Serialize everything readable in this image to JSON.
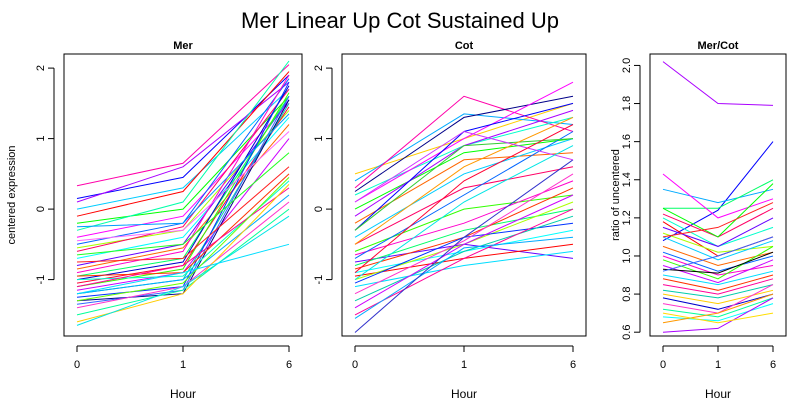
{
  "title": "Mer Linear Up Cot Sustained Up",
  "chart_data": [
    {
      "type": "line",
      "title": "Mer",
      "xlabel": "Hour",
      "ylabel": "centered expression",
      "x_ticks": [
        "0",
        "1",
        "6"
      ],
      "y_ticks": [
        -1,
        0,
        1,
        2
      ],
      "ylim": [
        -1.8,
        2.2
      ],
      "series": [
        {
          "values": [
            0.33,
            0.65,
            2.05
          ],
          "color": "#ff00aa"
        },
        {
          "values": [
            0.15,
            0.45,
            1.9
          ],
          "color": "#0000ff"
        },
        {
          "values": [
            0.1,
            0.6,
            1.8
          ],
          "color": "#aa00ff"
        },
        {
          "values": [
            0.0,
            0.3,
            1.7
          ],
          "color": "#00ccff"
        },
        {
          "values": [
            -0.1,
            0.25,
            1.95
          ],
          "color": "#ff0000"
        },
        {
          "values": [
            -0.2,
            0.0,
            1.6
          ],
          "color": "#00ff00"
        },
        {
          "values": [
            -0.3,
            0.1,
            2.1
          ],
          "color": "#00ffaa"
        },
        {
          "values": [
            -0.4,
            -0.1,
            1.5
          ],
          "color": "#ff00ff"
        },
        {
          "values": [
            -0.5,
            -0.2,
            1.85
          ],
          "color": "#0066ff"
        },
        {
          "values": [
            -0.55,
            -0.3,
            1.4
          ],
          "color": "#aaff00"
        },
        {
          "values": [
            -0.6,
            -0.25,
            1.7
          ],
          "color": "#ff0066"
        },
        {
          "values": [
            -0.7,
            -0.4,
            1.3
          ],
          "color": "#00ffff"
        },
        {
          "values": [
            -0.8,
            -0.5,
            1.55
          ],
          "color": "#6600ff"
        },
        {
          "values": [
            -0.85,
            -0.55,
            1.2
          ],
          "color": "#ff6600"
        },
        {
          "values": [
            -0.9,
            -0.6,
            1.9
          ],
          "color": "#ff00cc"
        },
        {
          "values": [
            -0.95,
            -0.7,
            1.6
          ],
          "color": "#00ff66"
        },
        {
          "values": [
            -1.0,
            -0.75,
            1.75
          ],
          "color": "#0000cc"
        },
        {
          "values": [
            -1.05,
            -0.8,
            1.45
          ],
          "color": "#ff0033"
        },
        {
          "values": [
            -1.1,
            -0.85,
            1.65
          ],
          "color": "#33ff00"
        },
        {
          "values": [
            -1.15,
            -0.9,
            1.0
          ],
          "color": "#cc00ff"
        },
        {
          "values": [
            -1.2,
            -1.0,
            1.5
          ],
          "color": "#00ccaa"
        },
        {
          "values": [
            -1.25,
            -1.1,
            1.8
          ],
          "color": "#0033ff"
        },
        {
          "values": [
            -1.3,
            -1.2,
            1.55
          ],
          "color": "#000088"
        },
        {
          "values": [
            -1.35,
            -1.15,
            1.6
          ],
          "color": "#3366ff"
        },
        {
          "values": [
            -0.95,
            -0.9,
            0.5
          ],
          "color": "#ff3300"
        },
        {
          "values": [
            -1.0,
            -0.95,
            0.4
          ],
          "color": "#00ffcc"
        },
        {
          "values": [
            -1.1,
            -0.8,
            0.3
          ],
          "color": "#ff0099"
        },
        {
          "values": [
            -1.2,
            -1.0,
            0.2
          ],
          "color": "#00aaff"
        },
        {
          "values": [
            -1.3,
            -1.05,
            0.45
          ],
          "color": "#66ff00"
        },
        {
          "values": [
            -1.4,
            -1.1,
            0.1
          ],
          "color": "#ff33cc"
        },
        {
          "values": [
            -1.5,
            -1.15,
            0.0
          ],
          "color": "#00ff99"
        },
        {
          "values": [
            -1.6,
            -1.2,
            0.35
          ],
          "color": "#ffcc00"
        },
        {
          "values": [
            -1.65,
            -1.1,
            -0.1
          ],
          "color": "#00e5e5"
        },
        {
          "values": [
            -1.2,
            -0.9,
            -0.5
          ],
          "color": "#00ddff"
        },
        {
          "values": [
            -0.75,
            -0.7,
            0.6
          ],
          "color": "#ff2222"
        },
        {
          "values": [
            -0.65,
            -0.5,
            0.8
          ],
          "color": "#22ff22"
        },
        {
          "values": [
            -0.45,
            -0.3,
            1.1
          ],
          "color": "#ff66ff"
        },
        {
          "values": [
            -0.25,
            -0.2,
            1.35
          ],
          "color": "#0099ff"
        }
      ]
    },
    {
      "type": "line",
      "title": "Cot",
      "xlabel": "Hour",
      "ylabel": "",
      "x_ticks": [
        "0",
        "1",
        "6"
      ],
      "y_ticks": [
        -1,
        0,
        1,
        2
      ],
      "ylim": [
        -1.8,
        2.2
      ],
      "series": [
        {
          "values": [
            0.5,
            1.0,
            1.5
          ],
          "color": "#ffcc00"
        },
        {
          "values": [
            0.4,
            1.35,
            1.2
          ],
          "color": "#00aaff"
        },
        {
          "values": [
            0.3,
            1.6,
            1.1
          ],
          "color": "#ff00aa"
        },
        {
          "values": [
            0.25,
            1.3,
            1.6
          ],
          "color": "#000088"
        },
        {
          "values": [
            0.2,
            0.9,
            1.3
          ],
          "color": "#00ffcc"
        },
        {
          "values": [
            0.1,
            1.0,
            1.8
          ],
          "color": "#ff00ff"
        },
        {
          "values": [
            0.0,
            0.8,
            1.0
          ],
          "color": "#00ff00"
        },
        {
          "values": [
            -0.1,
            0.9,
            1.4
          ],
          "color": "#aa00ff"
        },
        {
          "values": [
            -0.2,
            0.7,
            0.8
          ],
          "color": "#ff6600"
        },
        {
          "values": [
            -0.3,
            1.1,
            1.5
          ],
          "color": "#0000ff"
        },
        {
          "values": [
            -0.4,
            0.5,
            1.0
          ],
          "color": "#00ccff"
        },
        {
          "values": [
            -0.5,
            0.3,
            0.6
          ],
          "color": "#ff0066"
        },
        {
          "values": [
            -0.6,
            0.0,
            0.2
          ],
          "color": "#33ff00"
        },
        {
          "values": [
            -0.65,
            -0.2,
            0.4
          ],
          "color": "#ff00cc"
        },
        {
          "values": [
            -0.7,
            0.2,
            1.1
          ],
          "color": "#0066ff"
        },
        {
          "values": [
            -0.75,
            -0.5,
            -0.7
          ],
          "color": "#6600ff"
        },
        {
          "values": [
            -0.8,
            -0.3,
            0.0
          ],
          "color": "#00ff66"
        },
        {
          "values": [
            -0.85,
            -0.4,
            0.3
          ],
          "color": "#ff3300"
        },
        {
          "values": [
            -0.9,
            -0.6,
            -0.3
          ],
          "color": "#00ffff"
        },
        {
          "values": [
            -0.95,
            -0.7,
            -0.5
          ],
          "color": "#ff0000"
        },
        {
          "values": [
            -1.0,
            -0.5,
            0.1
          ],
          "color": "#aaff00"
        },
        {
          "values": [
            -1.05,
            -0.4,
            -0.2
          ],
          "color": "#0033ff"
        },
        {
          "values": [
            -1.1,
            -0.8,
            -0.6
          ],
          "color": "#00ddff"
        },
        {
          "values": [
            -1.2,
            -0.45,
            0.5
          ],
          "color": "#ff33cc"
        },
        {
          "values": [
            -1.3,
            -0.6,
            -0.1
          ],
          "color": "#00ccaa"
        },
        {
          "values": [
            -1.4,
            -0.5,
            0.2
          ],
          "color": "#cc00ff"
        },
        {
          "values": [
            -1.5,
            -0.7,
            0.0
          ],
          "color": "#ff0099"
        },
        {
          "values": [
            -1.55,
            -0.55,
            -0.4
          ],
          "color": "#00aaff"
        },
        {
          "values": [
            -1.75,
            -0.4,
            0.7
          ],
          "color": "#3333cc"
        },
        {
          "values": [
            -0.3,
            0.9,
            1.0
          ],
          "color": "#33cc33"
        },
        {
          "values": [
            -0.5,
            0.6,
            1.3
          ],
          "color": "#ff9900"
        },
        {
          "values": [
            0.1,
            1.1,
            0.7
          ],
          "color": "#cc33ff"
        },
        {
          "values": [
            -0.9,
            0.4,
            1.2
          ],
          "color": "#ff0033"
        },
        {
          "values": [
            -1.0,
            0.1,
            0.9
          ],
          "color": "#00e5e5"
        }
      ]
    },
    {
      "type": "line",
      "title": "Mer/Cot",
      "xlabel": "Hour",
      "ylabel": "ratio of uncentered",
      "x_ticks": [
        "0",
        "1",
        "6"
      ],
      "y_ticks": [
        0.6,
        0.8,
        1.0,
        1.2,
        1.4,
        1.6,
        1.8,
        2.0
      ],
      "ylim": [
        0.58,
        2.06
      ],
      "series": [
        {
          "values": [
            2.02,
            1.8,
            1.79
          ],
          "color": "#aa00ff"
        },
        {
          "values": [
            1.08,
            1.24,
            1.6
          ],
          "color": "#0000ff"
        },
        {
          "values": [
            1.35,
            1.28,
            1.35
          ],
          "color": "#00aaff"
        },
        {
          "values": [
            1.25,
            1.25,
            1.4
          ],
          "color": "#00ff66"
        },
        {
          "values": [
            1.43,
            1.2,
            1.3
          ],
          "color": "#ff00ff"
        },
        {
          "values": [
            1.22,
            1.1,
            1.25
          ],
          "color": "#ff0066"
        },
        {
          "values": [
            1.2,
            1.05,
            1.15
          ],
          "color": "#00ffcc"
        },
        {
          "values": [
            1.18,
            1.0,
            1.1
          ],
          "color": "#ff0000"
        },
        {
          "values": [
            1.15,
            1.05,
            1.2
          ],
          "color": "#6600ff"
        },
        {
          "values": [
            1.12,
            1.02,
            1.05
          ],
          "color": "#aaff00"
        },
        {
          "values": [
            1.1,
            0.98,
            1.08
          ],
          "color": "#00ccff"
        },
        {
          "values": [
            1.05,
            0.95,
            1.02
          ],
          "color": "#ff6600"
        },
        {
          "values": [
            1.02,
            0.92,
            1.0
          ],
          "color": "#0066ff"
        },
        {
          "values": [
            1.0,
            0.9,
            0.95
          ],
          "color": "#ff00cc"
        },
        {
          "values": [
            0.98,
            0.88,
            1.05
          ],
          "color": "#33ff00"
        },
        {
          "values": [
            0.95,
            0.86,
            0.98
          ],
          "color": "#cc00ff"
        },
        {
          "values": [
            0.93,
            0.91,
            1.02
          ],
          "color": "#000000"
        },
        {
          "values": [
            0.9,
            0.85,
            0.92
          ],
          "color": "#00ddff"
        },
        {
          "values": [
            0.88,
            0.82,
            0.9
          ],
          "color": "#ff3300"
        },
        {
          "values": [
            0.85,
            0.8,
            0.88
          ],
          "color": "#ff0099"
        },
        {
          "values": [
            0.82,
            0.78,
            0.85
          ],
          "color": "#00ccaa"
        },
        {
          "values": [
            0.8,
            0.75,
            0.82
          ],
          "color": "#ffcc00"
        },
        {
          "values": [
            0.78,
            0.72,
            0.8
          ],
          "color": "#0000cc"
        },
        {
          "values": [
            0.75,
            0.7,
            0.85
          ],
          "color": "#ff33cc"
        },
        {
          "values": [
            0.72,
            0.68,
            0.78
          ],
          "color": "#00ff99"
        },
        {
          "values": [
            0.68,
            0.66,
            0.75
          ],
          "color": "#00ffff"
        },
        {
          "values": [
            0.65,
            0.7,
            0.8
          ],
          "color": "#ff9900"
        },
        {
          "values": [
            0.6,
            0.62,
            0.78
          ],
          "color": "#aa00ff"
        },
        {
          "values": [
            0.7,
            0.65,
            0.7
          ],
          "color": "#ffdd00"
        },
        {
          "values": [
            1.25,
            1.1,
            1.38
          ],
          "color": "#00ff00"
        },
        {
          "values": [
            1.1,
            1.15,
            1.28
          ],
          "color": "#ff2222"
        },
        {
          "values": [
            0.92,
            1.0,
            1.1
          ],
          "color": "#3366ff"
        }
      ]
    }
  ]
}
